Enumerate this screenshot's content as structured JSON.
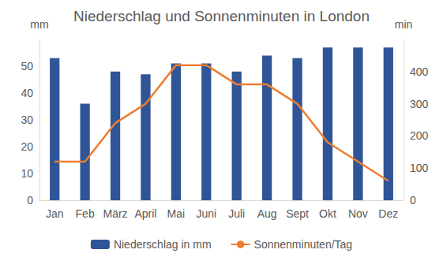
{
  "chart_data": {
    "type": "bar",
    "title": "Niederschlag und Sonnenminuten in London",
    "categories": [
      "Jan",
      "Feb",
      "März",
      "April",
      "Mai",
      "Juni",
      "Juli",
      "Aug",
      "Sept",
      "Okt",
      "Nov",
      "Dez"
    ],
    "series": [
      {
        "name": "Niederschlag in mm",
        "type": "bar",
        "color": "#2f5597",
        "values": [
          53,
          36,
          48,
          47,
          51,
          51,
          48,
          54,
          53,
          57,
          57,
          57
        ]
      },
      {
        "name": "Sonnenminuten/Tag",
        "type": "line",
        "axis": "y2",
        "color": "#ed7d31",
        "marker": "none",
        "values": [
          120,
          120,
          240,
          300,
          420,
          420,
          360,
          360,
          300,
          180,
          120,
          60
        ]
      }
    ],
    "y_label": "mm",
    "y2_label": "min",
    "ylim": [
      0,
      60
    ],
    "yticks": [
      0,
      10,
      20,
      30,
      40,
      50
    ],
    "y2lim": [
      0,
      500
    ],
    "y2ticks": [
      0,
      100,
      200,
      300,
      400
    ],
    "grid": false,
    "legend": "bottom"
  }
}
